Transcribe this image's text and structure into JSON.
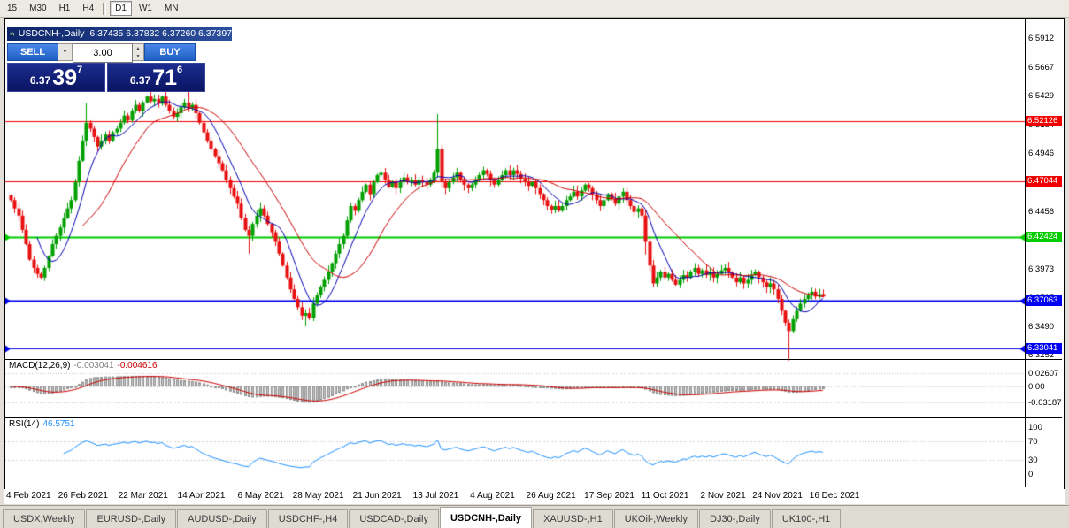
{
  "toolbar": {
    "timeframes": [
      {
        "label": "15",
        "active": false
      },
      {
        "label": "M30",
        "active": false
      },
      {
        "label": "H1",
        "active": false
      },
      {
        "label": "H4",
        "active": false
      },
      {
        "label": "D1",
        "active": true
      },
      {
        "label": "W1",
        "active": false
      },
      {
        "label": "MN",
        "active": false
      }
    ]
  },
  "chart_window": {
    "symbol": "USDCNH-,Daily",
    "ohlc": "6.37435 6.37832 6.37260 6.37397"
  },
  "trade_panel": {
    "sell_label": "SELL",
    "buy_label": "BUY",
    "lot": "3.00",
    "bid": {
      "base": "6.37",
      "main": "39",
      "sup": "7"
    },
    "ask": {
      "base": "6.37",
      "main": "71",
      "sup": "6"
    }
  },
  "chart_data": {
    "type": "candlestick",
    "symbol": "USDCNH-,Daily",
    "price_range": [
      6.3222,
      6.6075
    ],
    "last_x_frac": 0.802,
    "closes": [
      6.455,
      6.448,
      6.442,
      6.43,
      6.418,
      6.405,
      6.398,
      6.393,
      6.39,
      6.398,
      6.408,
      6.418,
      6.425,
      6.432,
      6.44,
      6.448,
      6.455,
      6.47,
      6.488,
      6.505,
      6.52,
      6.515,
      6.508,
      6.5,
      6.505,
      6.51,
      6.505,
      6.512,
      6.515,
      6.52,
      6.526,
      6.522,
      6.53,
      6.535,
      6.53,
      6.537,
      6.542,
      6.538,
      6.54,
      6.536,
      6.542,
      6.535,
      6.53,
      6.525,
      6.528,
      6.533,
      6.537,
      6.532,
      6.535,
      6.528,
      6.52,
      6.512,
      6.505,
      6.498,
      6.492,
      6.486,
      6.48,
      6.472,
      6.465,
      6.458,
      6.452,
      6.44,
      6.43,
      6.425,
      6.435,
      6.442,
      6.448,
      6.442,
      6.435,
      6.428,
      6.42,
      6.41,
      6.4,
      6.39,
      6.38,
      6.372,
      6.365,
      6.358,
      6.36,
      6.356,
      6.368,
      6.375,
      6.382,
      6.388,
      6.395,
      6.402,
      6.41,
      6.418,
      6.425,
      6.438,
      6.45,
      6.446,
      6.455,
      6.462,
      6.468,
      6.46,
      6.47,
      6.476,
      6.478,
      6.472,
      6.466,
      6.47,
      6.465,
      6.47,
      6.474,
      6.47,
      6.472,
      6.468,
      6.472,
      6.47,
      6.468,
      6.472,
      6.478,
      6.498,
      6.47,
      6.465,
      6.47,
      6.474,
      6.478,
      6.472,
      6.468,
      6.465,
      6.468,
      6.472,
      6.476,
      6.48,
      6.477,
      6.472,
      6.468,
      6.472,
      6.476,
      6.48,
      6.476,
      6.48,
      6.477,
      6.473,
      6.47,
      6.467,
      6.47,
      6.465,
      6.46,
      6.455,
      6.45,
      6.447,
      6.45,
      6.446,
      6.45,
      6.455,
      6.458,
      6.462,
      6.458,
      6.463,
      6.468,
      6.465,
      6.46,
      6.455,
      6.45,
      6.455,
      6.46,
      6.456,
      6.452,
      6.458,
      6.462,
      6.455,
      6.45,
      6.445,
      6.448,
      6.442,
      6.42,
      6.4,
      6.385,
      6.39,
      6.395,
      6.39,
      6.393,
      6.388,
      6.384,
      6.388,
      6.392,
      6.39,
      6.395,
      6.398,
      6.393,
      6.396,
      6.392,
      6.395,
      6.39,
      6.393,
      6.396,
      6.398,
      6.394,
      6.39,
      6.386,
      6.39,
      6.385,
      6.388,
      6.392,
      6.395,
      6.39,
      6.386,
      6.382,
      6.385,
      6.38,
      6.372,
      6.362,
      6.352,
      6.345,
      6.355,
      6.362,
      6.368,
      6.372,
      6.375,
      6.378,
      6.374,
      6.376,
      6.374
    ],
    "spikes": {
      "20": {
        "high": 0.012
      },
      "37": {
        "high": 0.008
      },
      "47": {
        "high": 0.009
      },
      "63": {
        "low": 0.012
      },
      "78": {
        "low": 0.006
      },
      "113": {
        "high": 0.026
      },
      "168": {
        "low": 0.006
      },
      "206": {
        "low": 0.02
      }
    },
    "price_scale": [
      {
        "label": "6.5912",
        "value": 6.5912
      },
      {
        "label": "6.5667",
        "value": 6.5667
      },
      {
        "label": "6.5429",
        "value": 6.5429
      },
      {
        "label": "6.5184",
        "value": 6.5184
      },
      {
        "label": "6.4946",
        "value": 6.4946
      },
      {
        "label": "6.4701",
        "value": 6.4701
      },
      {
        "label": "6.4456",
        "value": 6.4456
      },
      {
        "label": "6.4218",
        "value": 6.4218
      },
      {
        "label": "6.3973",
        "value": 6.3973
      },
      {
        "label": "6.3735",
        "value": 6.3735
      },
      {
        "label": "6.3490",
        "value": 6.349
      },
      {
        "label": "6.3252",
        "value": 6.3252
      }
    ],
    "hlines": [
      {
        "label": "6.52126",
        "value": 6.52126,
        "color": "#f20000",
        "width": 1,
        "arrows": false
      },
      {
        "label": "6.47044",
        "value": 6.47044,
        "color": "#f20000",
        "width": 1,
        "arrows": false
      },
      {
        "label": "6.42424",
        "value": 6.42424,
        "color": "#00cc00",
        "width": 2,
        "arrows": true
      },
      {
        "label": "6.37063",
        "value": 6.37063,
        "color": "#0000f2",
        "width": 2,
        "arrows": true
      },
      {
        "label": "6.33041",
        "value": 6.33041,
        "color": "#0000f2",
        "width": 1,
        "arrows": true
      }
    ],
    "date_labels": [
      {
        "label": "4 Feb 2021",
        "pos": 0.0
      },
      {
        "label": "26 Feb 2021",
        "pos": 0.051
      },
      {
        "label": "22 Mar 2021",
        "pos": 0.11
      },
      {
        "label": "14 Apr 2021",
        "pos": 0.168
      },
      {
        "label": "6 May 2021",
        "pos": 0.227
      },
      {
        "label": "28 May 2021",
        "pos": 0.281
      },
      {
        "label": "21 Jun 2021",
        "pos": 0.34
      },
      {
        "label": "13 Jul 2021",
        "pos": 0.399
      },
      {
        "label": "4 Aug 2021",
        "pos": 0.455
      },
      {
        "label": "26 Aug 2021",
        "pos": 0.51
      },
      {
        "label": "17 Sep 2021",
        "pos": 0.567
      },
      {
        "label": "11 Oct 2021",
        "pos": 0.623
      },
      {
        "label": "2 Nov 2021",
        "pos": 0.681
      },
      {
        "label": "24 Nov 2021",
        "pos": 0.732
      },
      {
        "label": "16 Dec 2021",
        "pos": 0.788
      }
    ],
    "indicators": {
      "macd": {
        "label": "MACD(12,26,9)",
        "main_value": "-0.003041",
        "signal_value": "-0.004616",
        "axis": [
          {
            "label": "0.02607",
            "value": 0.02607
          },
          {
            "label": "0.00",
            "value": 0
          },
          {
            "label": "-0.03187",
            "value": -0.03187
          }
        ]
      },
      "rsi": {
        "label": "RSI(14)",
        "value": "46.5751",
        "axis": [
          {
            "label": "100",
            "value": 100
          },
          {
            "label": "70",
            "value": 70
          },
          {
            "label": "30",
            "value": 30
          },
          {
            "label": "0",
            "value": 0
          }
        ],
        "levels": [
          70,
          30
        ]
      }
    },
    "colors": {
      "up": "#00a000",
      "down": "#e81010",
      "ma_fast": "#0000b4",
      "ma_slow": "#cc0000",
      "macd_hist_fill": "#c8c8c8",
      "macd_hist_edge": "#8f8f8f",
      "macd_signal": "#cc0000",
      "rsi_line": "#1e90ff"
    }
  },
  "tabs": [
    {
      "label": "USDX,Weekly",
      "active": false
    },
    {
      "label": "EURUSD-,Daily",
      "active": false
    },
    {
      "label": "AUDUSD-,Daily",
      "active": false
    },
    {
      "label": "USDCHF-,H4",
      "active": false
    },
    {
      "label": "USDCAD-,Daily",
      "active": false
    },
    {
      "label": "USDCNH-,Daily",
      "active": true
    },
    {
      "label": "XAUUSD-,H1",
      "active": false
    },
    {
      "label": "UKOil-,Weekly",
      "active": false
    },
    {
      "label": "DJ30-,Daily",
      "active": false
    },
    {
      "label": "UK100-,H1",
      "active": false
    }
  ]
}
